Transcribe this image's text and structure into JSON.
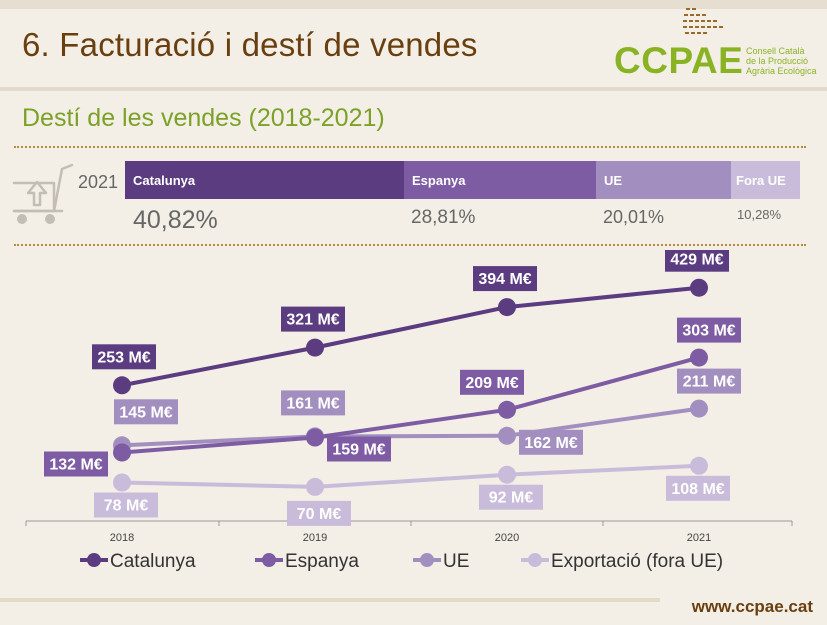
{
  "header": {
    "title": "6.  Facturació i destí de vendes"
  },
  "logo": {
    "wordmark": "CCPAE",
    "line1": "Consell Català",
    "line2": "de la Producció",
    "line3": "Agrària Ecològica",
    "color": "#8ab324"
  },
  "section": {
    "title": "Destí de les vendes (2018-2021)"
  },
  "distribution": {
    "year": "2021",
    "segments": [
      {
        "label": "Catalunya",
        "value": "40,82%",
        "share": 40.82,
        "color": "#5b3c80"
      },
      {
        "label": "Espanya",
        "value": "28,81%",
        "share": 28.81,
        "color": "#7d5ca3"
      },
      {
        "label": "UE",
        "value": "20,01%",
        "share": 20.01,
        "color": "#a28fc0"
      },
      {
        "label": "Fora UE",
        "value": "10,28%",
        "share": 10.28,
        "color": "#c9bcdb"
      }
    ]
  },
  "chart_data": {
    "type": "line",
    "title": "",
    "xlabel": "",
    "ylabel": "",
    "x": [
      "2018",
      "2019",
      "2020",
      "2021"
    ],
    "ylim": [
      50,
      450
    ],
    "grid": false,
    "legend_position": "bottom",
    "series": [
      {
        "name": "Catalunya",
        "values": [
          253,
          321,
          394,
          429
        ],
        "labels": [
          "253 M€",
          "321 M€",
          "394 M€",
          "429 M€"
        ],
        "color": "#5b3c80"
      },
      {
        "name": "Espanya",
        "values": [
          132,
          159,
          209,
          303
        ],
        "labels": [
          "132 M€",
          "159 M€",
          "209 M€",
          "303 M€"
        ],
        "color": "#7d5ca3"
      },
      {
        "name": "UE",
        "values": [
          145,
          161,
          162,
          211
        ],
        "labels": [
          "145 M€",
          "161 M€",
          "162 M€",
          "211 M€"
        ],
        "color": "#a28fc0"
      },
      {
        "name": "Exportació (fora UE)",
        "values": [
          78,
          70,
          92,
          108
        ],
        "labels": [
          "78 M€",
          "70 M€",
          "92 M€",
          "108 M€"
        ],
        "color": "#c9bcdb"
      }
    ]
  },
  "footer": {
    "website": "www.ccpae.cat"
  }
}
